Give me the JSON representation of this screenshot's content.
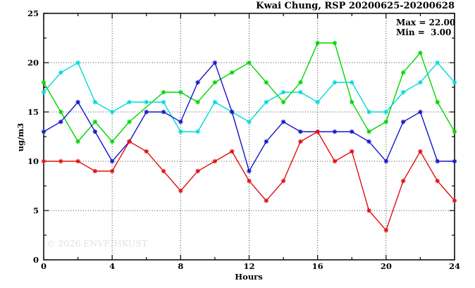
{
  "header": {
    "title": "Kwai Chung, RSP 20200625-20200628"
  },
  "annotations": {
    "max_label": "Max = 22.00",
    "min_label": "Min =  3.00"
  },
  "watermark_text": "© 2026 ENVF, HKUST",
  "colors": {
    "axis": "#000000",
    "grid": "#3a3a3a",
    "watermark": "#e2e2e2",
    "series_green": "#00d500",
    "series_cyan": "#00d9d9",
    "series_blue": "#1515cc",
    "series_red": "#e01010"
  },
  "chart_data": {
    "type": "line",
    "title": "Kwai Chung, RSP 20200625-20200628",
    "xlabel": "Hours",
    "ylabel": "ug/m3",
    "xlim": [
      0,
      24
    ],
    "ylim": [
      0,
      25
    ],
    "x_major_ticks": [
      0,
      4,
      8,
      12,
      16,
      20,
      24
    ],
    "x_minor_ticks": [
      2,
      6,
      10,
      14,
      18,
      22
    ],
    "y_major_ticks": [
      0,
      5,
      10,
      15,
      20,
      25
    ],
    "y_minor_ticks": [
      2.5,
      7.5,
      12.5,
      17.5,
      22.5
    ],
    "grid": true,
    "legend_position": "none",
    "marker": "asterisk",
    "stats": {
      "max": 22.0,
      "min": 3.0
    },
    "x": [
      0,
      1,
      2,
      3,
      4,
      5,
      6,
      7,
      8,
      9,
      10,
      11,
      12,
      13,
      14,
      15,
      16,
      17,
      18,
      19,
      20,
      21,
      22,
      23,
      24
    ],
    "series": [
      {
        "name": "green",
        "color": "#00d500",
        "values": [
          18,
          15,
          12,
          14,
          12,
          14,
          null,
          17,
          17,
          16,
          18,
          19,
          20,
          18,
          16,
          18,
          22,
          22,
          16,
          13,
          14,
          19,
          21,
          16,
          13
        ]
      },
      {
        "name": "cyan",
        "color": "#00d9d9",
        "values": [
          17,
          19,
          20,
          16,
          15,
          16,
          16,
          16,
          13,
          13,
          16,
          15,
          14,
          16,
          17,
          17,
          16,
          18,
          18,
          15,
          15,
          17,
          18,
          20,
          18
        ]
      },
      {
        "name": "blue",
        "color": "#1515cc",
        "values": [
          13,
          14,
          16,
          13,
          10,
          12,
          15,
          15,
          14,
          18,
          20,
          15,
          9,
          12,
          14,
          13,
          13,
          13,
          13,
          12,
          10,
          14,
          15,
          10,
          10
        ]
      },
      {
        "name": "red",
        "color": "#e01010",
        "values": [
          10,
          10,
          10,
          9,
          9,
          12,
          11,
          9,
          7,
          9,
          10,
          11,
          8,
          6,
          8,
          12,
          13,
          10,
          11,
          5,
          3,
          8,
          11,
          8,
          6
        ]
      }
    ]
  }
}
